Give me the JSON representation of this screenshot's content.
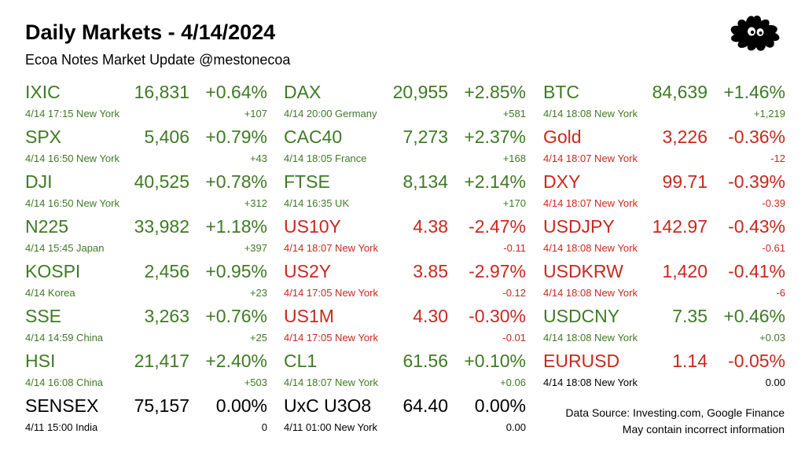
{
  "header": {
    "title": "Daily Markets - 4/14/2024",
    "subtitle": "Ecoa Notes Market Update @mestonecoa"
  },
  "columns": [
    [
      {
        "symbol": "IXIC",
        "price": "16,831",
        "pct": "+0.64%",
        "meta": "4/14 17:15 New York",
        "change": "+107",
        "trend": "up"
      },
      {
        "symbol": "SPX",
        "price": "5,406",
        "pct": "+0.79%",
        "meta": "4/14 16:50 New York",
        "change": "+43",
        "trend": "up"
      },
      {
        "symbol": "DJI",
        "price": "40,525",
        "pct": "+0.78%",
        "meta": "4/14 16:50 New York",
        "change": "+312",
        "trend": "up"
      },
      {
        "symbol": "N225",
        "price": "33,982",
        "pct": "+1.18%",
        "meta": "4/14 15:45 Japan",
        "change": "+397",
        "trend": "up"
      },
      {
        "symbol": "KOSPI",
        "price": "2,456",
        "pct": "+0.95%",
        "meta": "4/14  Korea",
        "change": "+23",
        "trend": "up"
      },
      {
        "symbol": "SSE",
        "price": "3,263",
        "pct": "+0.76%",
        "meta": "4/14 14:59 China",
        "change": "+25",
        "trend": "up"
      },
      {
        "symbol": "HSI",
        "price": "21,417",
        "pct": "+2.40%",
        "meta": "4/14 16:08 China",
        "change": "+503",
        "trend": "up"
      },
      {
        "symbol": "SENSEX",
        "price": "75,157",
        "pct": "0.00%",
        "meta": "4/11 15:00 India",
        "change": "0",
        "trend": "flat"
      }
    ],
    [
      {
        "symbol": "DAX",
        "price": "20,955",
        "pct": "+2.85%",
        "meta": "4/14 20:00 Germany",
        "change": "+581",
        "trend": "up"
      },
      {
        "symbol": "CAC40",
        "price": "7,273",
        "pct": "+2.37%",
        "meta": "4/14 18:05 France",
        "change": "+168",
        "trend": "up"
      },
      {
        "symbol": "FTSE",
        "price": "8,134",
        "pct": "+2.14%",
        "meta": "4/14 16:35 UK",
        "change": "+170",
        "trend": "up"
      },
      {
        "symbol": "US10Y",
        "price": "4.38",
        "pct": "-2.47%",
        "meta": "4/14 18:07 New York",
        "change": "-0.11",
        "trend": "down"
      },
      {
        "symbol": "US2Y",
        "price": "3.85",
        "pct": "-2.97%",
        "meta": "4/14 17:05 New York",
        "change": "-0.12",
        "trend": "down"
      },
      {
        "symbol": "US1M",
        "price": "4.30",
        "pct": "-0.30%",
        "meta": "4/14 17:05 New York",
        "change": "-0.01",
        "trend": "down"
      },
      {
        "symbol": "CL1",
        "price": "61.56",
        "pct": "+0.10%",
        "meta": "4/14 18:07 New York",
        "change": "+0.06",
        "trend": "up"
      },
      {
        "symbol": "UxC U3O8",
        "price": "64.40",
        "pct": "0.00%",
        "meta": "4/11 01:00 New York",
        "change": "0.00",
        "trend": "flat"
      }
    ],
    [
      {
        "symbol": "BTC",
        "price": "84,639",
        "pct": "+1.46%",
        "meta": "4/14 18:08 New York",
        "change": "+1,219",
        "trend": "up"
      },
      {
        "symbol": "Gold",
        "price": "3,226",
        "pct": "-0.36%",
        "meta": "4/14 18:07 New York",
        "change": "-12",
        "trend": "down"
      },
      {
        "symbol": "DXY",
        "price": "99.71",
        "pct": "-0.39%",
        "meta": "4/14 18:07 New York",
        "change": "-0.39",
        "trend": "down"
      },
      {
        "symbol": "USDJPY",
        "price": "142.97",
        "pct": "-0.43%",
        "meta": "4/14 18:08 New York",
        "change": "-0.61",
        "trend": "down"
      },
      {
        "symbol": "USDKRW",
        "price": "1,420",
        "pct": "-0.41%",
        "meta": "4/14 18:08 New York",
        "change": "-6",
        "trend": "down"
      },
      {
        "symbol": "USDCNY",
        "price": "7.35",
        "pct": "+0.46%",
        "meta": "4/14 18:08 New York",
        "change": "+0.03",
        "trend": "up"
      },
      {
        "symbol": "EURUSD",
        "price": "1.14",
        "pct": "-0.05%",
        "meta": "4/14 18:08 New York",
        "change": "0.00",
        "trend": "mixed"
      }
    ]
  ],
  "footer": {
    "source": "Data Source: Investing.com, Google Finance",
    "disclaimer": "May contain incorrect information"
  },
  "colors": {
    "up": "#3f7a24",
    "down": "#c8281e",
    "flat": "#000000"
  },
  "icons": {
    "logo": "black-splat-logo-icon"
  }
}
